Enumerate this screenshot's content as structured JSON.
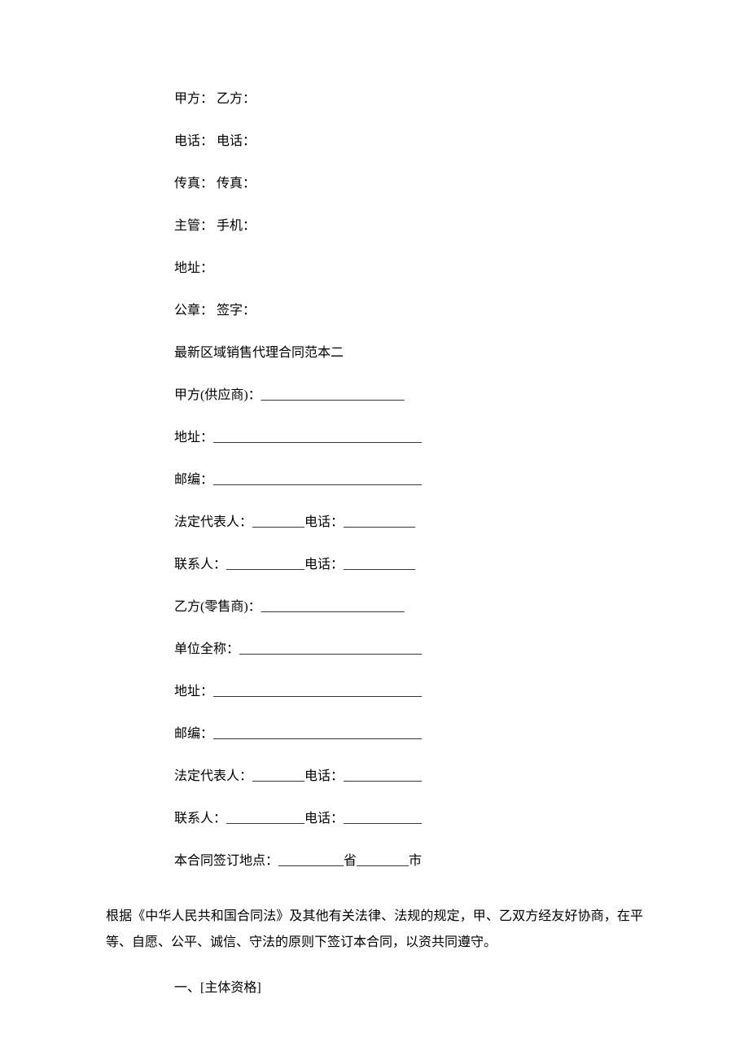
{
  "section1": {
    "line1": "甲方：  乙方：",
    "line2": "电话：  电话：",
    "line3": "传真：  传真：",
    "line4": "主管： 手机：",
    "line5": "地址：",
    "line6": "公章：  签字：",
    "line7": "最新区域销售代理合同范本二",
    "line8": "甲方(供应商)：______________________",
    "line9": "地址：________________________________",
    "line10": "邮编：________________________________",
    "line11": "法定代表人：________电话：___________",
    "line12": "联系人：____________电话：___________",
    "line13": "乙方(零售商)：______________________",
    "line14": "单位全称：____________________________",
    "line15": "地址：________________________________",
    "line16": "邮编：________________________________",
    "line17": "法定代表人：________电话：____________",
    "line18": "联系人：____________电话：____________",
    "line19": "本合同签订地点：__________省________市"
  },
  "paragraph": "根据《中华人民共和国合同法》及其他有关法律、法规的规定，甲、乙双方经友好协商，在平等、自愿、公平、诚信、守法的原则下签订本合同，以资共同遵守。",
  "sectionHeading": "一、[主体资格]"
}
